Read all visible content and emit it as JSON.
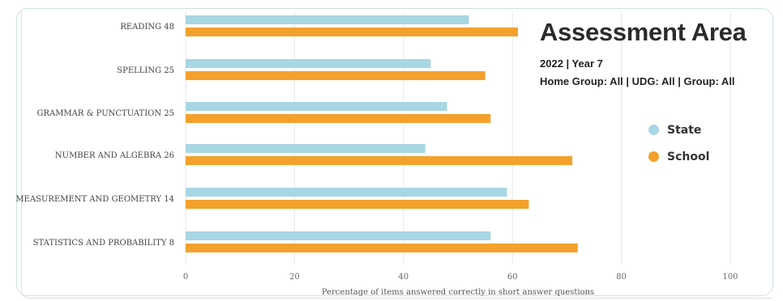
{
  "header": {
    "title": "Assessment Area",
    "subtitle_1": "2022 | Year 7",
    "subtitle_2": "Home Group: All | UDG: All | Group: All"
  },
  "colors": {
    "state": "#a9d6e3",
    "school": "#f3a12c",
    "grid": "#e6e6e6"
  },
  "chart_data": {
    "type": "bar",
    "orientation": "horizontal",
    "categories": [
      "READING 48",
      "SPELLING 25",
      "GRAMMAR & PUNCTUATION 25",
      "NUMBER AND ALGEBRA 26",
      "MEASUREMENT AND GEOMETRY 14",
      "STATISTICS AND PROBABILITY 8"
    ],
    "series": [
      {
        "name": "State",
        "values": [
          52,
          45,
          48,
          44,
          59,
          56
        ]
      },
      {
        "name": "School",
        "values": [
          61,
          55,
          56,
          71,
          63,
          72
        ]
      }
    ],
    "xlabel": "Percentage of items answered correctly in short answer questions",
    "ylabel": "",
    "xlim": [
      0,
      100
    ],
    "xticks": [
      "0",
      "20",
      "40",
      "60",
      "80",
      "100"
    ],
    "legend_position": "right",
    "grid": true
  }
}
